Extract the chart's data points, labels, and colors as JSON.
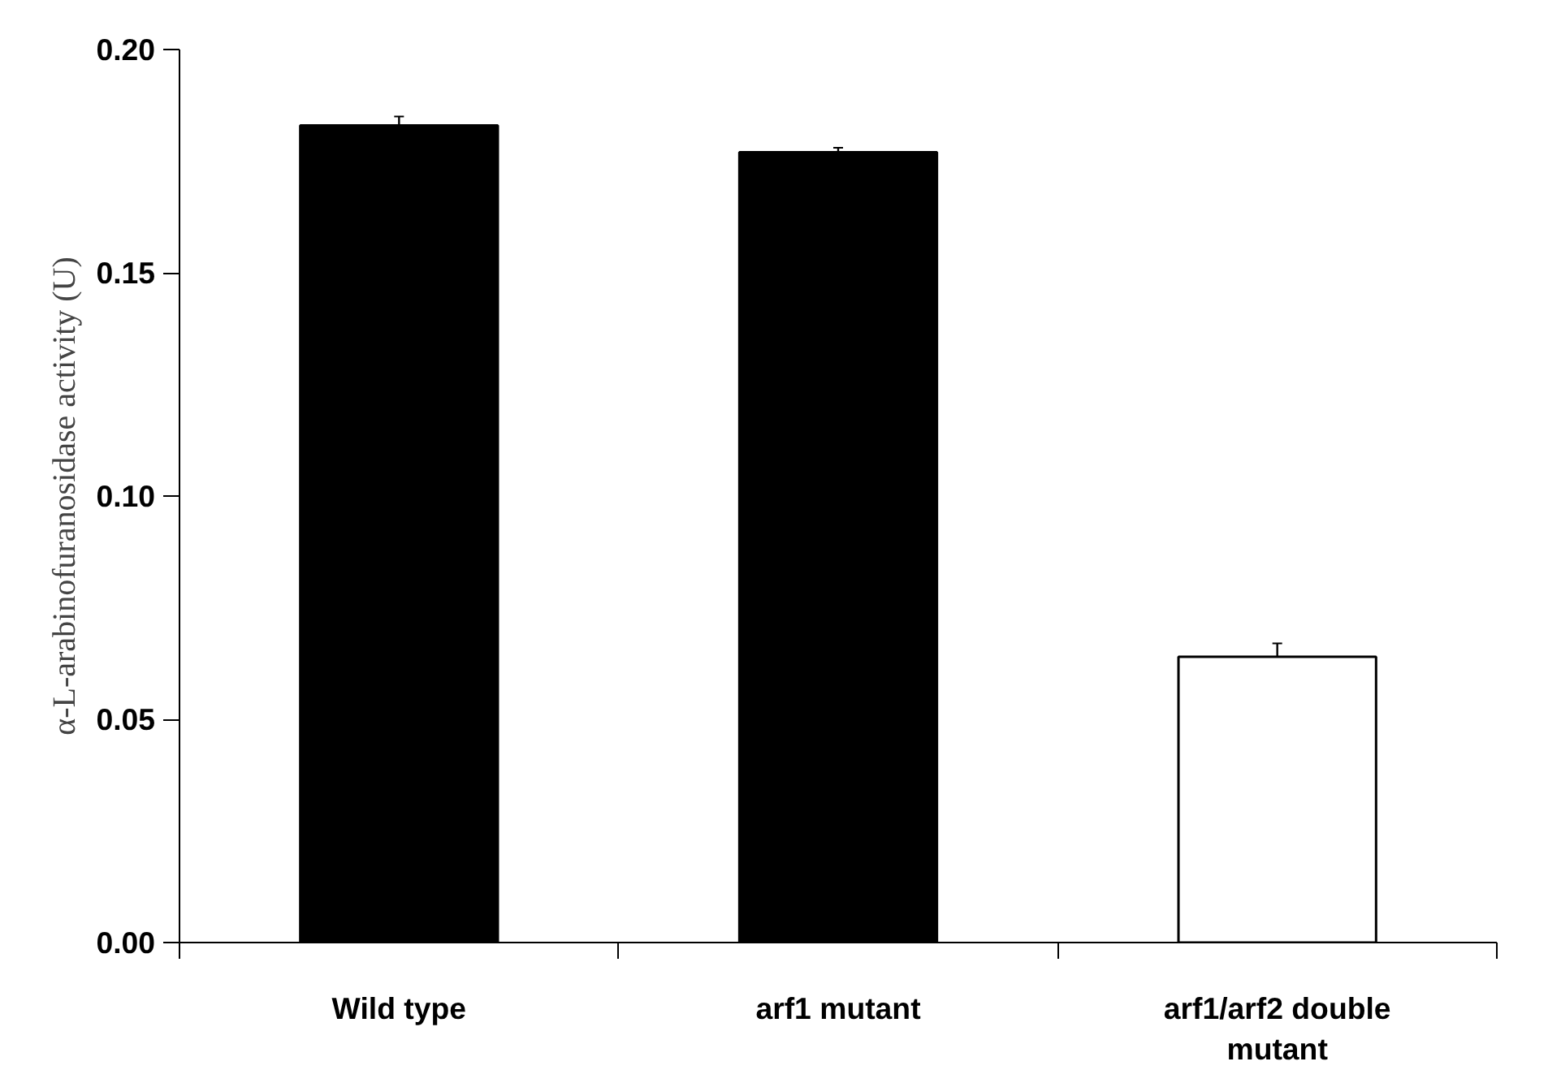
{
  "chart_data": {
    "type": "bar",
    "ylabel": "α-L-arabinofuranosidase activity (U)",
    "categories": [
      "Wild type",
      "arf1 mutant",
      "arf1/arf2 double mutant"
    ],
    "values": [
      0.183,
      0.177,
      0.064
    ],
    "errors": [
      0.002,
      0.001,
      0.003
    ],
    "colors": [
      "#000000",
      "#000000",
      "#ffffff"
    ],
    "ylim": [
      0,
      0.2
    ],
    "yticks": [
      {
        "value": 0,
        "label": "0.00"
      },
      {
        "value": 0.05,
        "label": "0.05"
      },
      {
        "value": 0.1,
        "label": "0.10"
      },
      {
        "value": 0.15,
        "label": "0.15"
      },
      {
        "value": 0.2,
        "label": "0.20"
      }
    ],
    "grid": false
  }
}
